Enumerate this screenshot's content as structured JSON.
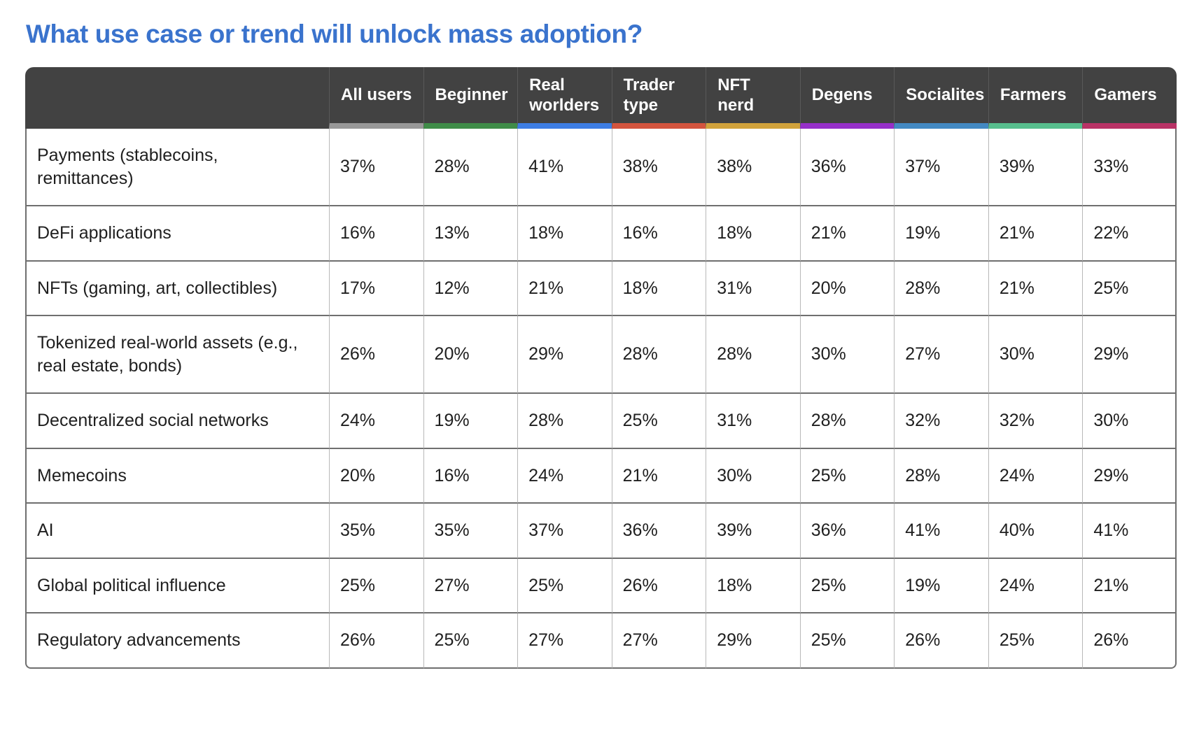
{
  "title": "What use case or trend will unlock mass adoption?",
  "colors": {
    "title_text": "#3A73CD",
    "header_background": "#424242",
    "header_text": "#ffffff",
    "row_separator": "#6f6f6f",
    "column_separator": "#b8b8b8"
  },
  "chart_data": {
    "type": "table",
    "title": "What use case or trend will unlock mass adoption?",
    "columns": [
      {
        "label": "All users",
        "color": "#989898"
      },
      {
        "label": "Beginner",
        "color": "#3F8C48"
      },
      {
        "label": "Real worlders",
        "color": "#3D7DE3"
      },
      {
        "label": "Trader type",
        "color": "#D3543E"
      },
      {
        "label": "NFT nerd",
        "color": "#D1A23B"
      },
      {
        "label": "Degens",
        "color": "#962FC9"
      },
      {
        "label": "Socialites",
        "color": "#4389C2"
      },
      {
        "label": "Farmers",
        "color": "#57BE8D"
      },
      {
        "label": "Gamers",
        "color": "#B93366"
      }
    ],
    "rows": [
      {
        "label": "Payments (stablecoins, remittances)",
        "values": [
          "37%",
          "28%",
          "41%",
          "38%",
          "38%",
          "36%",
          "37%",
          "39%",
          "33%"
        ]
      },
      {
        "label": "DeFi applications",
        "values": [
          "16%",
          "13%",
          "18%",
          "16%",
          "18%",
          "21%",
          "19%",
          "21%",
          "22%"
        ]
      },
      {
        "label": "NFTs (gaming, art, collectibles)",
        "values": [
          "17%",
          "12%",
          "21%",
          "18%",
          "31%",
          "20%",
          "28%",
          "21%",
          "25%"
        ]
      },
      {
        "label": "Tokenized real-world assets (e.g., real estate, bonds)",
        "values": [
          "26%",
          "20%",
          "29%",
          "28%",
          "28%",
          "30%",
          "27%",
          "30%",
          "29%"
        ]
      },
      {
        "label": "Decentralized social networks",
        "values": [
          "24%",
          "19%",
          "28%",
          "25%",
          "31%",
          "28%",
          "32%",
          "32%",
          "30%"
        ]
      },
      {
        "label": "Memecoins",
        "values": [
          "20%",
          "16%",
          "24%",
          "21%",
          "30%",
          "25%",
          "28%",
          "24%",
          "29%"
        ]
      },
      {
        "label": "AI",
        "values": [
          "35%",
          "35%",
          "37%",
          "36%",
          "39%",
          "36%",
          "41%",
          "40%",
          "41%"
        ]
      },
      {
        "label": "Global political influence",
        "values": [
          "25%",
          "27%",
          "25%",
          "26%",
          "18%",
          "25%",
          "19%",
          "24%",
          "21%"
        ]
      },
      {
        "label": "Regulatory advancements",
        "values": [
          "26%",
          "25%",
          "27%",
          "27%",
          "29%",
          "25%",
          "26%",
          "25%",
          "26%"
        ]
      }
    ]
  }
}
